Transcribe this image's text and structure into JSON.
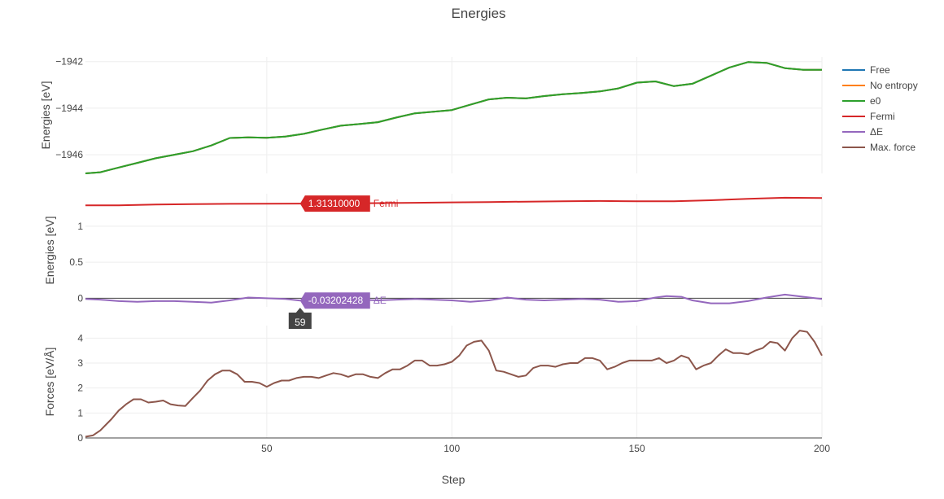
{
  "chart_data": {
    "type": "line",
    "title": "Energies",
    "xlabel": "Step",
    "xlim": [
      1,
      200
    ],
    "x_ticks": [
      50,
      100,
      150,
      200
    ],
    "panels": [
      {
        "id": "energies",
        "ylabel": "Energies [eV]",
        "ylim": [
          -1946.8,
          -1941.8
        ],
        "y_ticks": [
          -1946,
          -1944,
          -1942
        ],
        "y_tick_labels": [
          "−1946",
          "−1944",
          "−1942"
        ],
        "series": [
          {
            "name": "Free",
            "color": "#1f77b4",
            "x": [
              1,
              5,
              10,
              15,
              20,
              25,
              30,
              35,
              40,
              45,
              50,
              55,
              60,
              65,
              70,
              75,
              80,
              85,
              90,
              95,
              100,
              105,
              110,
              115,
              120,
              125,
              130,
              135,
              140,
              145,
              150,
              155,
              160,
              165,
              170,
              175,
              180,
              185,
              190,
              195,
              200
            ],
            "y": [
              -1946.8,
              -1946.75,
              -1946.55,
              -1946.35,
              -1946.15,
              -1946.0,
              -1945.85,
              -1945.6,
              -1945.28,
              -1945.25,
              -1945.27,
              -1945.22,
              -1945.1,
              -1944.92,
              -1944.75,
              -1944.68,
              -1944.6,
              -1944.4,
              -1944.22,
              -1944.15,
              -1944.08,
              -1943.85,
              -1943.62,
              -1943.55,
              -1943.58,
              -1943.48,
              -1943.4,
              -1943.35,
              -1943.28,
              -1943.15,
              -1942.9,
              -1942.85,
              -1943.05,
              -1942.95,
              -1942.6,
              -1942.25,
              -1942.02,
              -1942.05,
              -1942.28,
              -1942.35,
              -1942.35
            ]
          },
          {
            "name": "No entropy",
            "color": "#ff7f0e",
            "x": [
              1,
              5,
              10,
              15,
              20,
              25,
              30,
              35,
              40,
              45,
              50,
              55,
              60,
              65,
              70,
              75,
              80,
              85,
              90,
              95,
              100,
              105,
              110,
              115,
              120,
              125,
              130,
              135,
              140,
              145,
              150,
              155,
              160,
              165,
              170,
              175,
              180,
              185,
              190,
              195,
              200
            ],
            "y": [
              -1946.8,
              -1946.75,
              -1946.55,
              -1946.35,
              -1946.15,
              -1946.0,
              -1945.85,
              -1945.6,
              -1945.28,
              -1945.25,
              -1945.27,
              -1945.22,
              -1945.1,
              -1944.92,
              -1944.75,
              -1944.68,
              -1944.6,
              -1944.4,
              -1944.22,
              -1944.15,
              -1944.08,
              -1943.85,
              -1943.62,
              -1943.55,
              -1943.58,
              -1943.48,
              -1943.4,
              -1943.35,
              -1943.28,
              -1943.15,
              -1942.9,
              -1942.85,
              -1943.05,
              -1942.95,
              -1942.6,
              -1942.25,
              -1942.02,
              -1942.05,
              -1942.28,
              -1942.35,
              -1942.35
            ]
          },
          {
            "name": "e0",
            "color": "#2ca02c",
            "x": [
              1,
              5,
              10,
              15,
              20,
              25,
              30,
              35,
              40,
              45,
              50,
              55,
              60,
              65,
              70,
              75,
              80,
              85,
              90,
              95,
              100,
              105,
              110,
              115,
              120,
              125,
              130,
              135,
              140,
              145,
              150,
              155,
              160,
              165,
              170,
              175,
              180,
              185,
              190,
              195,
              200
            ],
            "y": [
              -1946.8,
              -1946.75,
              -1946.55,
              -1946.35,
              -1946.15,
              -1946.0,
              -1945.85,
              -1945.6,
              -1945.28,
              -1945.25,
              -1945.27,
              -1945.22,
              -1945.1,
              -1944.92,
              -1944.75,
              -1944.68,
              -1944.6,
              -1944.4,
              -1944.22,
              -1944.15,
              -1944.08,
              -1943.85,
              -1943.62,
              -1943.55,
              -1943.58,
              -1943.48,
              -1943.4,
              -1943.35,
              -1943.28,
              -1943.15,
              -1942.9,
              -1942.85,
              -1943.05,
              -1942.95,
              -1942.6,
              -1942.25,
              -1942.02,
              -1942.05,
              -1942.28,
              -1942.35,
              -1942.35
            ]
          }
        ]
      },
      {
        "id": "fermi-delta",
        "ylabel": "Energies [eV]",
        "ylim": [
          -0.12,
          1.45
        ],
        "y_ticks": [
          0,
          0.5,
          1
        ],
        "y_tick_labels": [
          "0",
          "0.5",
          "1"
        ],
        "zero_line": true,
        "series": [
          {
            "name": "Fermi",
            "color": "#d62728",
            "x": [
              1,
              10,
              20,
              30,
              40,
              50,
              59,
              70,
              80,
              90,
              100,
              110,
              120,
              130,
              140,
              150,
              160,
              170,
              180,
              190,
              200
            ],
            "y": [
              1.29,
              1.29,
              1.3,
              1.305,
              1.31,
              1.312,
              1.3131,
              1.315,
              1.32,
              1.325,
              1.33,
              1.335,
              1.34,
              1.345,
              1.35,
              1.345,
              1.345,
              1.36,
              1.38,
              1.395,
              1.39
            ]
          },
          {
            "name": "ΔE",
            "color": "#9467bd",
            "x": [
              1,
              5,
              10,
              15,
              20,
              25,
              30,
              35,
              40,
              45,
              50,
              55,
              59,
              65,
              70,
              75,
              80,
              85,
              90,
              95,
              100,
              105,
              110,
              115,
              120,
              125,
              130,
              135,
              140,
              145,
              150,
              155,
              158,
              162,
              165,
              170,
              175,
              180,
              185,
              190,
              195,
              200
            ],
            "y": [
              -0.01,
              -0.02,
              -0.04,
              -0.05,
              -0.04,
              -0.04,
              -0.05,
              -0.06,
              -0.03,
              0.01,
              0.0,
              -0.01,
              -0.032,
              -0.03,
              -0.03,
              -0.02,
              -0.03,
              -0.02,
              -0.01,
              -0.02,
              -0.03,
              -0.05,
              -0.03,
              0.01,
              -0.02,
              -0.03,
              -0.02,
              -0.01,
              -0.02,
              -0.05,
              -0.04,
              0.01,
              0.03,
              0.02,
              -0.03,
              -0.07,
              -0.07,
              -0.04,
              0.01,
              0.05,
              0.02,
              -0.01
            ]
          }
        ],
        "hover_labels": [
          {
            "series": "Fermi",
            "x": 59,
            "y": 1.3131,
            "value": "1.31310000",
            "name": "Fermi"
          },
          {
            "series": "ΔE",
            "x": 59,
            "y": -0.032,
            "value": "-0.03202428",
            "name": "ΔE"
          }
        ],
        "hover_x_label": "59"
      },
      {
        "id": "forces",
        "ylabel": "Forces [eV/Å]",
        "ylim": [
          0,
          4.5
        ],
        "y_ticks": [
          0,
          1,
          2,
          3,
          4
        ],
        "y_tick_labels": [
          "0",
          "1",
          "2",
          "3",
          "4"
        ],
        "series": [
          {
            "name": "Max. force",
            "color": "#8c564b",
            "x": [
              1,
              3,
              5,
              8,
              10,
              12,
              14,
              16,
              18,
              20,
              22,
              24,
              26,
              28,
              30,
              32,
              34,
              36,
              38,
              40,
              42,
              44,
              46,
              48,
              50,
              52,
              54,
              56,
              58,
              60,
              62,
              64,
              66,
              68,
              70,
              72,
              74,
              76,
              78,
              80,
              82,
              84,
              86,
              88,
              90,
              92,
              94,
              96,
              98,
              100,
              102,
              104,
              106,
              108,
              110,
              112,
              114,
              116,
              118,
              120,
              122,
              124,
              126,
              128,
              130,
              132,
              134,
              136,
              138,
              140,
              142,
              144,
              146,
              148,
              150,
              152,
              154,
              156,
              158,
              160,
              162,
              164,
              166,
              168,
              170,
              172,
              174,
              176,
              178,
              180,
              182,
              184,
              186,
              188,
              190,
              192,
              194,
              196,
              198,
              200
            ],
            "y": [
              0.05,
              0.1,
              0.3,
              0.75,
              1.1,
              1.35,
              1.55,
              1.55,
              1.42,
              1.45,
              1.5,
              1.35,
              1.3,
              1.28,
              1.6,
              1.9,
              2.3,
              2.55,
              2.7,
              2.7,
              2.55,
              2.25,
              2.25,
              2.2,
              2.05,
              2.2,
              2.3,
              2.3,
              2.4,
              2.45,
              2.45,
              2.4,
              2.5,
              2.6,
              2.55,
              2.45,
              2.55,
              2.55,
              2.45,
              2.4,
              2.6,
              2.75,
              2.75,
              2.9,
              3.1,
              3.1,
              2.9,
              2.9,
              2.95,
              3.05,
              3.3,
              3.7,
              3.85,
              3.9,
              3.5,
              2.7,
              2.65,
              2.55,
              2.45,
              2.5,
              2.8,
              2.9,
              2.9,
              2.85,
              2.95,
              3.0,
              3.0,
              3.2,
              3.2,
              3.1,
              2.75,
              2.85,
              3.0,
              3.1,
              3.1,
              3.1,
              3.1,
              3.2,
              3.0,
              3.1,
              3.3,
              3.2,
              2.75,
              2.9,
              3.0,
              3.3,
              3.55,
              3.4,
              3.4,
              3.35,
              3.5,
              3.6,
              3.85,
              3.8,
              3.5,
              4.0,
              4.3,
              4.25,
              3.85,
              3.3
            ]
          }
        ]
      }
    ],
    "legend": {
      "position": "right",
      "items": [
        {
          "name": "Free",
          "color": "#1f77b4"
        },
        {
          "name": "No entropy",
          "color": "#ff7f0e"
        },
        {
          "name": "e0",
          "color": "#2ca02c"
        },
        {
          "name": "Fermi",
          "color": "#d62728"
        },
        {
          "name": "ΔE",
          "color": "#9467bd"
        },
        {
          "name": "Max. force",
          "color": "#8c564b"
        }
      ]
    },
    "grid": true
  }
}
